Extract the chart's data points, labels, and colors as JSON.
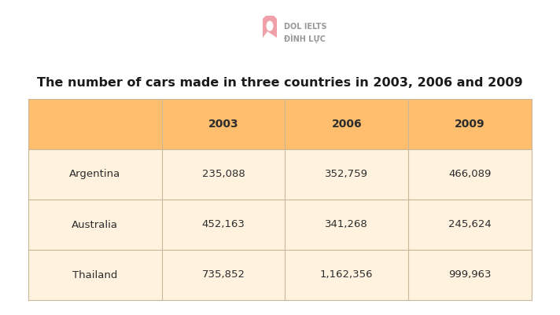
{
  "title": "The number of cars made in three countries in 2003, 2006 and 2009",
  "columns": [
    "",
    "2003",
    "2006",
    "2009"
  ],
  "rows": [
    [
      "Argentina",
      "235,088",
      "352,759",
      "466,089"
    ],
    [
      "Australia",
      "452,163",
      "341,268",
      "245,624"
    ],
    [
      "Thailand",
      "735,852",
      "1,162,356",
      "999,963"
    ]
  ],
  "header_bg": "#FFBE6E",
  "row_bg": "#FFF3E0",
  "border_color": "#C8B89A",
  "title_color": "#1A1A1A",
  "header_text_color": "#2C2C2C",
  "cell_text_color": "#2C2C2C",
  "bg_color": "#FFFFFF",
  "logo_text1": "DOL IELTS",
  "logo_text2": "ĐÌNH LỰC",
  "logo_color": "#AAAAAA",
  "title_fontsize": 11.5,
  "header_fontsize": 10,
  "cell_fontsize": 9.5
}
